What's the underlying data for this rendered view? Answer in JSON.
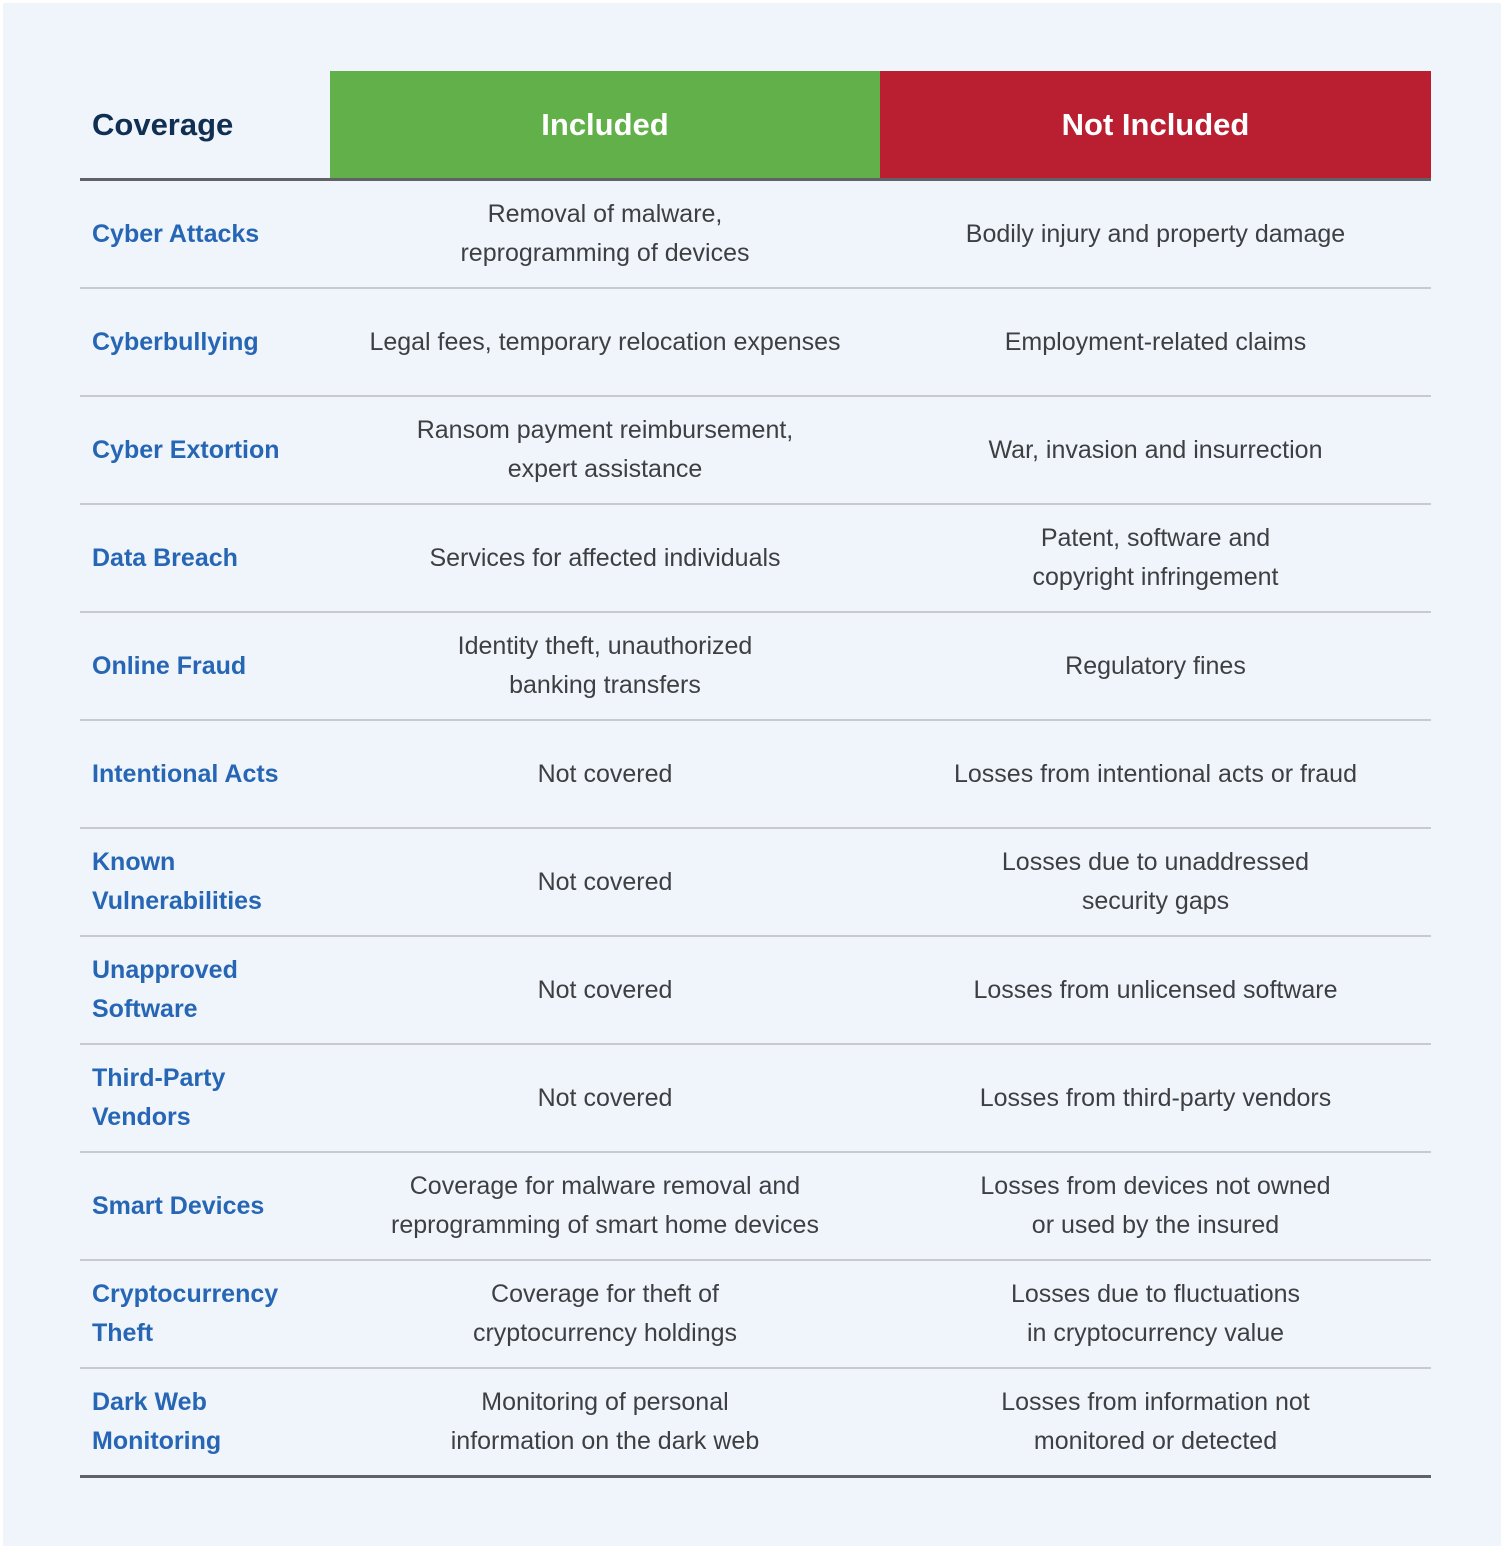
{
  "header": {
    "coverage": "Coverage",
    "included": "Included",
    "not_included": "Not Included"
  },
  "colors": {
    "included": "#62b04a",
    "not_included": "#ba1f31",
    "coverage_text": "#2766b4"
  },
  "rows": [
    {
      "coverage": "Cyber Attacks",
      "included": "Removal of malware,\nreprogramming of devices",
      "not_included": "Bodily injury and property damage"
    },
    {
      "coverage": "Cyberbullying",
      "included": "Legal fees, temporary relocation expenses",
      "not_included": "Employment-related claims"
    },
    {
      "coverage": "Cyber Extortion",
      "included": "Ransom payment reimbursement,\nexpert assistance",
      "not_included": "War, invasion and insurrection"
    },
    {
      "coverage": "Data Breach",
      "included": "Services for affected individuals",
      "not_included": "Patent, software and\ncopyright infringement"
    },
    {
      "coverage": "Online Fraud",
      "included": "Identity theft, unauthorized\nbanking transfers",
      "not_included": "Regulatory fines"
    },
    {
      "coverage": "Intentional Acts",
      "included": "Not covered",
      "not_included": "Losses from intentional acts or fraud"
    },
    {
      "coverage": "Known Vulnerabilities",
      "included": "Not covered",
      "not_included": "Losses due to unaddressed\nsecurity gaps"
    },
    {
      "coverage": "Unapproved Software",
      "included": "Not covered",
      "not_included": "Losses from unlicensed software"
    },
    {
      "coverage": "Third-Party Vendors",
      "included": "Not covered",
      "not_included": "Losses from third-party vendors"
    },
    {
      "coverage": "Smart Devices",
      "included": "Coverage for malware removal and\nreprogramming of smart home devices",
      "not_included": "Losses from devices not owned\nor used by the insured"
    },
    {
      "coverage": "Cryptocurrency Theft",
      "included": "Coverage for theft of\ncryptocurrency holdings",
      "not_included": "Losses due to fluctuations\nin cryptocurrency value"
    },
    {
      "coverage": "Dark Web Monitoring",
      "included": "Monitoring of personal\ninformation on the dark web",
      "not_included": "Losses from information not\nmonitored or detected"
    }
  ]
}
